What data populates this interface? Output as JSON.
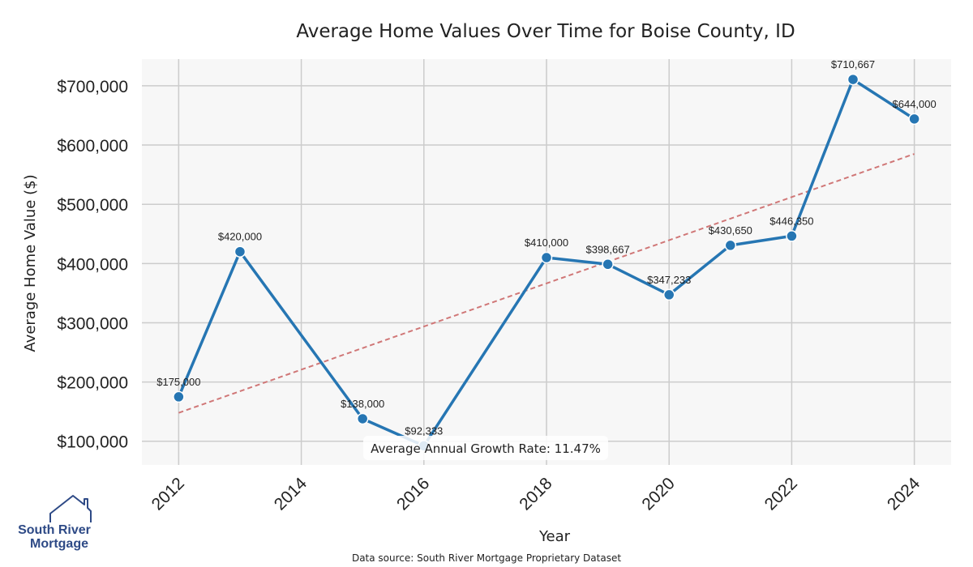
{
  "chart_data": {
    "type": "line",
    "title": "Average Home Values Over Time for Boise County, ID",
    "xlabel": "Year",
    "ylabel": "Average Home Value ($)",
    "x": [
      2012,
      2013,
      2015,
      2016,
      2018,
      2019,
      2020,
      2021,
      2022,
      2023,
      2024
    ],
    "values": [
      175000,
      420000,
      138000,
      92333,
      410000,
      398667,
      347233,
      430650,
      446350,
      710667,
      644000
    ],
    "point_labels": [
      "$175,000",
      "$420,000",
      "$138,000",
      "$92,333",
      "$410,000",
      "$398,667",
      "$347,233",
      "$430,650",
      "$446,350",
      "$710,667",
      "$644,000"
    ],
    "xlim": [
      2011.4,
      2024.6
    ],
    "ylim": [
      60000,
      745000
    ],
    "x_ticks": [
      2012,
      2014,
      2016,
      2018,
      2020,
      2022,
      2024
    ],
    "x_tick_labels": [
      "2012",
      "2014",
      "2016",
      "2018",
      "2020",
      "2022",
      "2024"
    ],
    "y_ticks": [
      100000,
      200000,
      300000,
      400000,
      500000,
      600000,
      700000
    ],
    "y_tick_labels": [
      "$100,000",
      "$200,000",
      "$300,000",
      "$400,000",
      "$500,000",
      "$600,000",
      "$700,000"
    ],
    "trend_line": {
      "x": [
        2012,
        2024
      ],
      "y": [
        148000,
        585000
      ],
      "color": "#d07777",
      "style": "dashed"
    },
    "grid": true,
    "line_color": "#2676b3",
    "annotation": "Average Annual Growth Rate: 11.47%",
    "source_note": "Data source: South River Mortgage Proprietary Dataset"
  },
  "logo": {
    "line1": "South River",
    "line2": "Mortgage",
    "icon": "house-outline-icon",
    "color": "#2e4a86"
  }
}
